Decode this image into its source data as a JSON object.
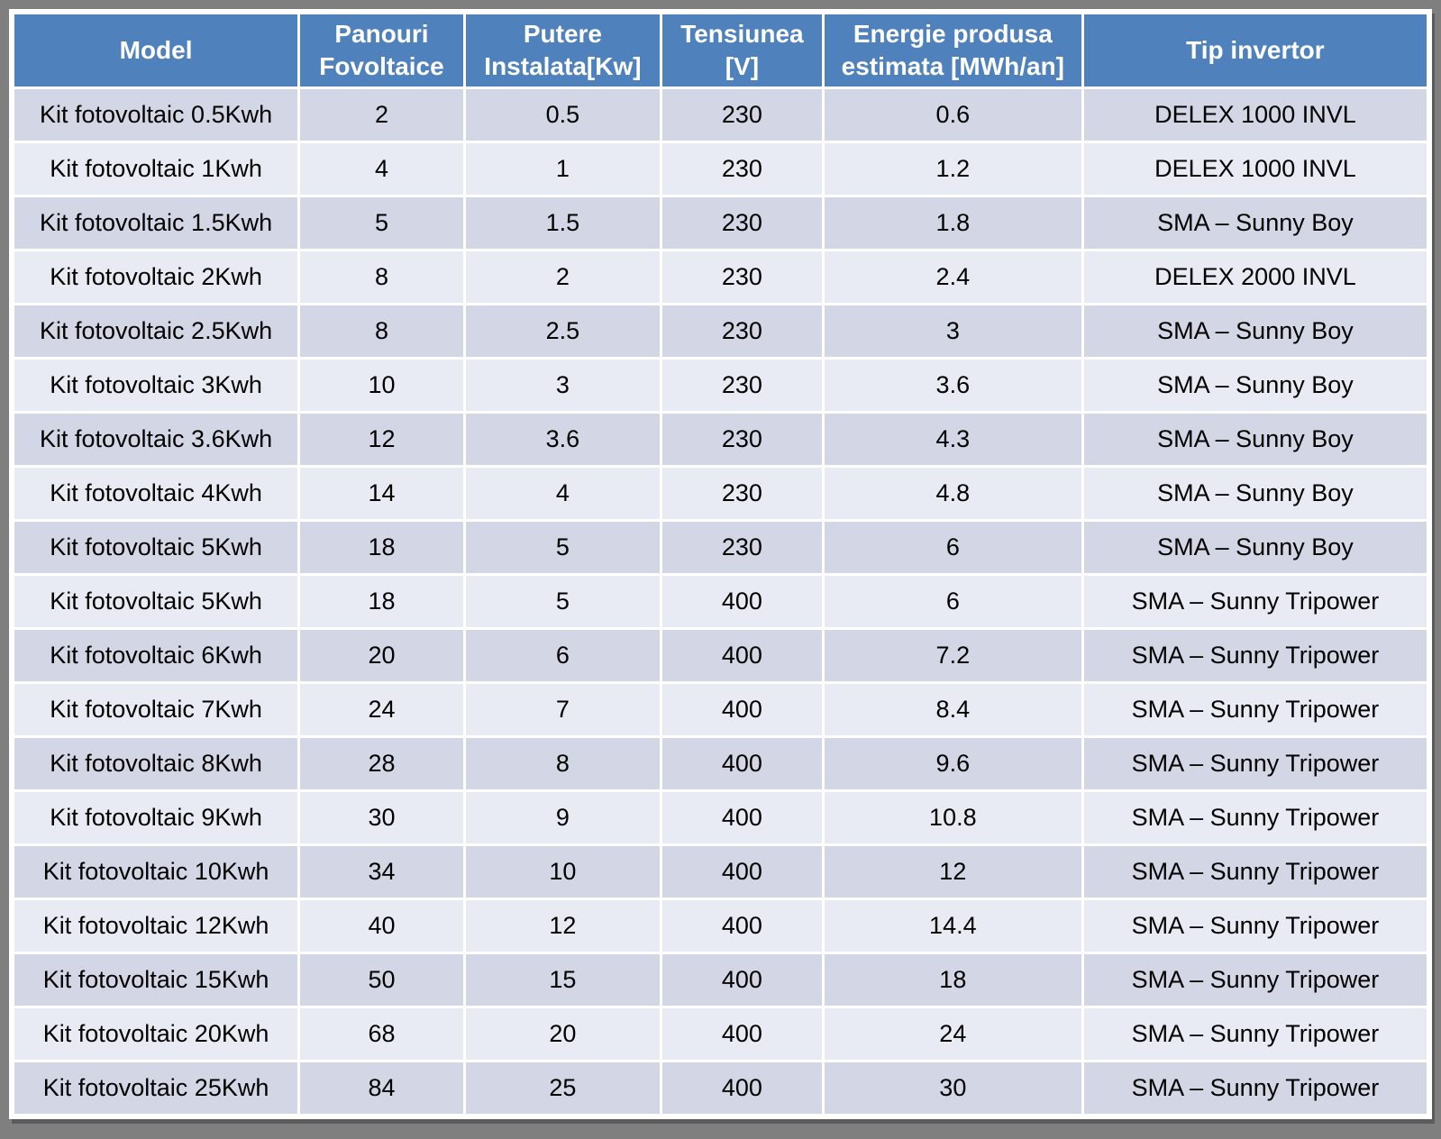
{
  "page": {
    "background_color": "#7F7F7F",
    "surface_color": "#FFFFFF"
  },
  "theme": {
    "header_bg": "#4F81BD",
    "header_text": "#FFFFFF",
    "row_dark": "#D2D6E5",
    "row_light": "#E9EBF4",
    "grid_color": "#FFFFFF",
    "body_text": "#000000"
  },
  "table": {
    "columns": [
      {
        "key": "model",
        "label": "Model"
      },
      {
        "key": "panouri",
        "label": "Panouri\nFovoltaice"
      },
      {
        "key": "putere",
        "label": "Putere\nInstalata[Kw]"
      },
      {
        "key": "tensiunea",
        "label": "Tensiunea\n[V]"
      },
      {
        "key": "energie",
        "label": "Energie produsa\nestimata [MWh/an]"
      },
      {
        "key": "invertor",
        "label": "Tip invertor"
      }
    ],
    "rows": [
      [
        "Kit fotovoltaic 0.5Kwh",
        "2",
        "0.5",
        "230",
        "0.6",
        "DELEX 1000 INVL"
      ],
      [
        "Kit fotovoltaic 1Kwh",
        "4",
        "1",
        "230",
        "1.2",
        "DELEX 1000 INVL"
      ],
      [
        "Kit fotovoltaic 1.5Kwh",
        "5",
        "1.5",
        "230",
        "1.8",
        "SMA – Sunny Boy"
      ],
      [
        "Kit fotovoltaic 2Kwh",
        "8",
        "2",
        "230",
        "2.4",
        "DELEX 2000 INVL"
      ],
      [
        "Kit fotovoltaic 2.5Kwh",
        "8",
        "2.5",
        "230",
        "3",
        "SMA – Sunny Boy"
      ],
      [
        "Kit fotovoltaic 3Kwh",
        "10",
        "3",
        "230",
        "3.6",
        "SMA – Sunny Boy"
      ],
      [
        "Kit fotovoltaic 3.6Kwh",
        "12",
        "3.6",
        "230",
        "4.3",
        "SMA – Sunny Boy"
      ],
      [
        "Kit fotovoltaic 4Kwh",
        "14",
        "4",
        "230",
        "4.8",
        "SMA – Sunny Boy"
      ],
      [
        "Kit fotovoltaic 5Kwh",
        "18",
        "5",
        "230",
        "6",
        "SMA – Sunny Boy"
      ],
      [
        "Kit fotovoltaic 5Kwh",
        "18",
        "5",
        "400",
        "6",
        "SMA – Sunny Tripower"
      ],
      [
        "Kit fotovoltaic 6Kwh",
        "20",
        "6",
        "400",
        "7.2",
        "SMA – Sunny Tripower"
      ],
      [
        "Kit fotovoltaic 7Kwh",
        "24",
        "7",
        "400",
        "8.4",
        "SMA – Sunny Tripower"
      ],
      [
        "Kit fotovoltaic 8Kwh",
        "28",
        "8",
        "400",
        "9.6",
        "SMA – Sunny Tripower"
      ],
      [
        "Kit fotovoltaic 9Kwh",
        "30",
        "9",
        "400",
        "10.8",
        "SMA – Sunny Tripower"
      ],
      [
        "Kit fotovoltaic 10Kwh",
        "34",
        "10",
        "400",
        "12",
        "SMA – Sunny Tripower"
      ],
      [
        "Kit fotovoltaic 12Kwh",
        "40",
        "12",
        "400",
        "14.4",
        "SMA – Sunny Tripower"
      ],
      [
        "Kit fotovoltaic 15Kwh",
        "50",
        "15",
        "400",
        "18",
        "SMA – Sunny Tripower"
      ],
      [
        "Kit fotovoltaic 20Kwh",
        "68",
        "20",
        "400",
        "24",
        "SMA – Sunny Tripower"
      ],
      [
        "Kit fotovoltaic 25Kwh",
        "84",
        "25",
        "400",
        "30",
        "SMA – Sunny Tripower"
      ]
    ]
  }
}
